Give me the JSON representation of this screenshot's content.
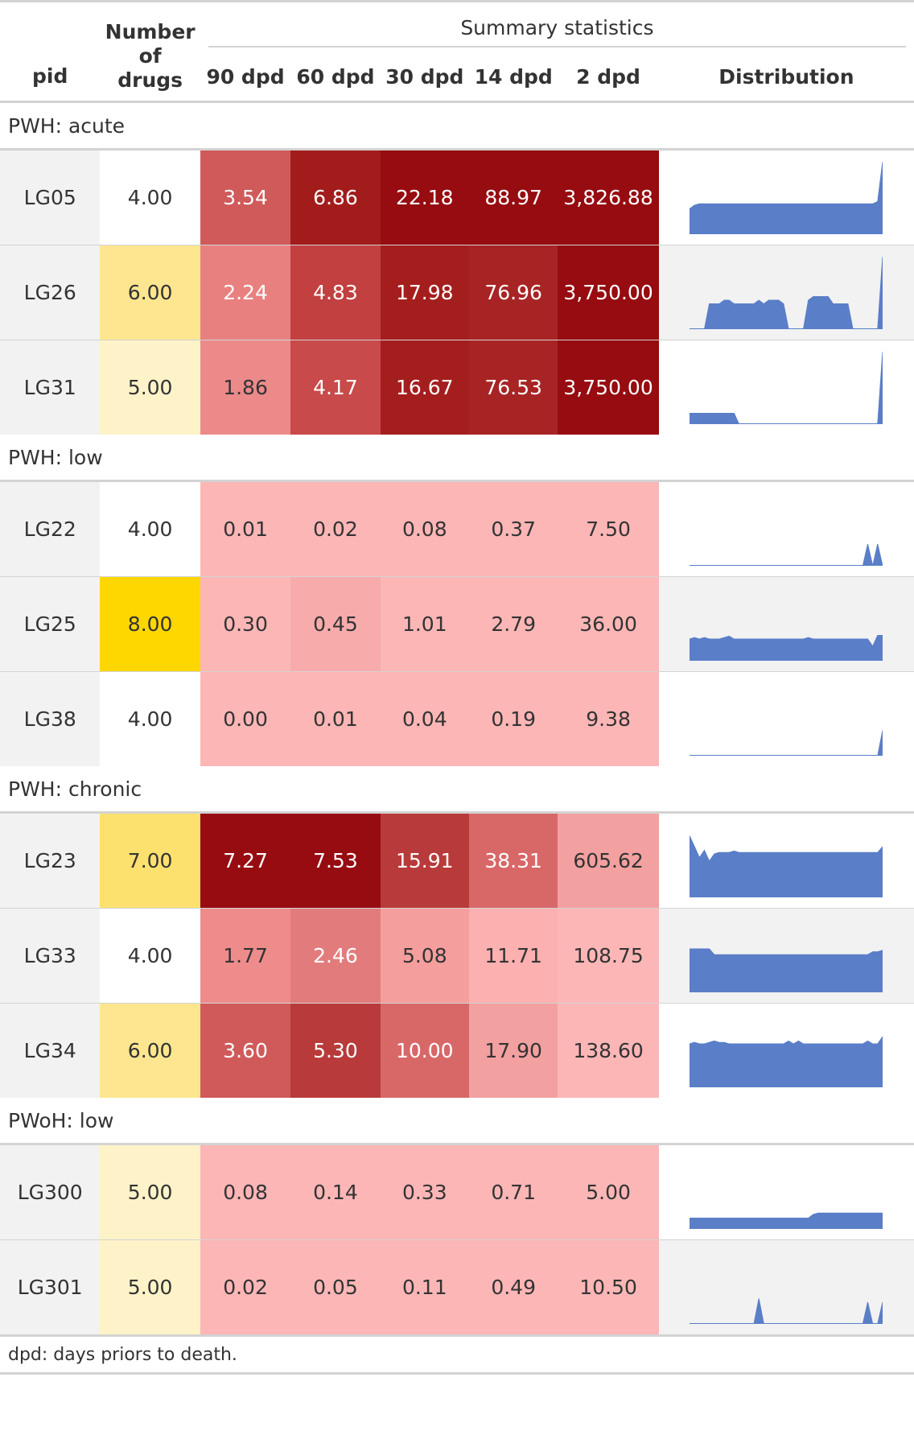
{
  "headers": {
    "pid": "pid",
    "num_drugs_line1": "Number",
    "num_drugs_line2": "of",
    "num_drugs_line3": "drugs",
    "spanner": "Summary statistics",
    "cols": [
      "90 dpd",
      "60 dpd",
      "30 dpd",
      "14 dpd",
      "2 dpd"
    ],
    "distribution": "Distribution"
  },
  "groups": [
    {
      "label": "PWH: acute",
      "rows": [
        {
          "pid": "LG05",
          "drugs": "4.00",
          "drugs_bg": "#ffffff",
          "vals": [
            "3.54",
            "6.86",
            "22.18",
            "88.97",
            "3,826.88"
          ],
          "bgs": [
            "#d05a5a",
            "#a31c1c",
            "#960c10",
            "#960c10",
            "#960c10"
          ],
          "fgs": [
            "#ffffff",
            "#ffffff",
            "#ffffff",
            "#ffffff",
            "#ffffff"
          ],
          "dist": [
            0.35,
            0.4,
            0.42,
            0.42,
            0.42,
            0.42,
            0.42,
            0.42,
            0.42,
            0.42,
            0.42,
            0.42,
            0.42,
            0.42,
            0.42,
            0.42,
            0.42,
            0.42,
            0.42,
            0.42,
            0.42,
            0.42,
            0.42,
            0.42,
            0.42,
            0.42,
            0.42,
            0.42,
            0.42,
            0.42,
            0.42,
            0.42,
            0.42,
            0.42,
            0.42,
            0.42,
            0.42,
            0.42,
            0.45,
            1.0
          ]
        },
        {
          "pid": "LG26",
          "drugs": "6.00",
          "drugs_bg": "#fde68f",
          "vals": [
            "2.24",
            "4.83",
            "17.98",
            "76.96",
            "3,750.00"
          ],
          "bgs": [
            "#e88080",
            "#c24040",
            "#a51e1e",
            "#a82424",
            "#960c10"
          ],
          "fgs": [
            "#ffffff",
            "#ffffff",
            "#ffffff",
            "#ffffff",
            "#ffffff"
          ],
          "dist": [
            0,
            0,
            0,
            0,
            0.35,
            0.35,
            0.35,
            0.4,
            0.4,
            0.35,
            0.35,
            0.35,
            0.35,
            0.35,
            0.4,
            0.35,
            0.4,
            0.4,
            0.4,
            0.35,
            0,
            0,
            0,
            0,
            0.4,
            0.45,
            0.45,
            0.45,
            0.45,
            0.35,
            0.35,
            0.35,
            0.35,
            0,
            0,
            0,
            0,
            0,
            0,
            1.0
          ]
        },
        {
          "pid": "LG31",
          "drugs": "5.00",
          "drugs_bg": "#fef3c8",
          "vals": [
            "1.86",
            "4.17",
            "16.67",
            "76.53",
            "3,750.00"
          ],
          "bgs": [
            "#ec8a8a",
            "#c84a4a",
            "#a51e1e",
            "#a82424",
            "#960c10"
          ],
          "fgs": [
            "#333333",
            "#ffffff",
            "#ffffff",
            "#ffffff",
            "#ffffff"
          ],
          "dist": [
            0.15,
            0.15,
            0.15,
            0.15,
            0.15,
            0.15,
            0.15,
            0.15,
            0.15,
            0.15,
            0,
            0,
            0,
            0,
            0,
            0,
            0,
            0,
            0,
            0,
            0,
            0,
            0,
            0,
            0,
            0,
            0,
            0,
            0,
            0,
            0,
            0,
            0,
            0,
            0,
            0,
            0,
            0,
            0,
            1.0
          ]
        }
      ]
    },
    {
      "label": "PWH: low",
      "rows": [
        {
          "pid": "LG22",
          "drugs": "4.00",
          "drugs_bg": "#ffffff",
          "vals": [
            "0.01",
            "0.02",
            "0.08",
            "0.37",
            "7.50"
          ],
          "bgs": [
            "#fcb6b6",
            "#fcb6b6",
            "#fcb6b6",
            "#fcb6b6",
            "#fcb6b6"
          ],
          "fgs": [
            "#333333",
            "#333333",
            "#333333",
            "#333333",
            "#333333"
          ],
          "dist": [
            0,
            0,
            0,
            0,
            0,
            0,
            0,
            0,
            0,
            0,
            0,
            0,
            0,
            0,
            0,
            0,
            0,
            0,
            0,
            0,
            0,
            0,
            0,
            0,
            0,
            0,
            0,
            0,
            0,
            0,
            0,
            0,
            0,
            0,
            0,
            0,
            0.3,
            0,
            0.3,
            0
          ]
        },
        {
          "pid": "LG25",
          "drugs": "8.00",
          "drugs_bg": "#ffd700",
          "vals": [
            "0.30",
            "0.45",
            "1.01",
            "2.79",
            "36.00"
          ],
          "bgs": [
            "#fcb6b6",
            "#f8abab",
            "#fcb6b6",
            "#fcb6b6",
            "#fcb6b6"
          ],
          "fgs": [
            "#333333",
            "#333333",
            "#333333",
            "#333333",
            "#333333"
          ],
          "dist": [
            0.3,
            0.32,
            0.3,
            0.32,
            0.3,
            0.3,
            0.3,
            0.32,
            0.34,
            0.3,
            0.3,
            0.3,
            0.3,
            0.3,
            0.3,
            0.3,
            0.3,
            0.3,
            0.3,
            0.3,
            0.3,
            0.3,
            0.3,
            0.3,
            0.32,
            0.3,
            0.3,
            0.3,
            0.3,
            0.3,
            0.3,
            0.3,
            0.3,
            0.3,
            0.3,
            0.3,
            0.3,
            0.2,
            0.35,
            0.35
          ]
        },
        {
          "pid": "LG38",
          "drugs": "4.00",
          "drugs_bg": "#ffffff",
          "vals": [
            "0.00",
            "0.01",
            "0.04",
            "0.19",
            "9.38"
          ],
          "bgs": [
            "#fcb6b6",
            "#fcb6b6",
            "#fcb6b6",
            "#fcb6b6",
            "#fcb6b6"
          ],
          "fgs": [
            "#333333",
            "#333333",
            "#333333",
            "#333333",
            "#333333"
          ],
          "dist": [
            0,
            0,
            0,
            0,
            0,
            0,
            0,
            0,
            0,
            0,
            0,
            0,
            0,
            0,
            0,
            0,
            0,
            0,
            0,
            0,
            0,
            0,
            0,
            0,
            0,
            0,
            0,
            0,
            0,
            0,
            0,
            0,
            0,
            0,
            0,
            0,
            0,
            0,
            0,
            0.35
          ]
        }
      ]
    },
    {
      "label": "PWH: chronic",
      "rows": [
        {
          "pid": "LG23",
          "drugs": "7.00",
          "drugs_bg": "#fde16f",
          "vals": [
            "7.27",
            "7.53",
            "15.91",
            "38.31",
            "605.62"
          ],
          "bgs": [
            "#960c10",
            "#960c10",
            "#b93a3a",
            "#d86868",
            "#f3a0a0"
          ],
          "fgs": [
            "#ffffff",
            "#ffffff",
            "#ffffff",
            "#ffffff",
            "#333333"
          ],
          "dist": [
            0.85,
            0.7,
            0.55,
            0.65,
            0.5,
            0.6,
            0.62,
            0.62,
            0.62,
            0.64,
            0.62,
            0.62,
            0.62,
            0.62,
            0.62,
            0.62,
            0.62,
            0.62,
            0.62,
            0.62,
            0.62,
            0.62,
            0.62,
            0.62,
            0.62,
            0.62,
            0.62,
            0.62,
            0.62,
            0.62,
            0.62,
            0.62,
            0.62,
            0.62,
            0.62,
            0.62,
            0.62,
            0.62,
            0.62,
            0.7
          ]
        },
        {
          "pid": "LG33",
          "drugs": "4.00",
          "drugs_bg": "#ffffff",
          "vals": [
            "1.77",
            "2.46",
            "5.08",
            "11.71",
            "108.75"
          ],
          "bgs": [
            "#ee8c8c",
            "#e27c7c",
            "#f59e9e",
            "#fcb0b0",
            "#fcb6b6"
          ],
          "fgs": [
            "#333333",
            "#ffffff",
            "#333333",
            "#333333",
            "#333333"
          ],
          "dist": [
            0.6,
            0.6,
            0.6,
            0.6,
            0.6,
            0.52,
            0.52,
            0.52,
            0.52,
            0.52,
            0.52,
            0.52,
            0.52,
            0.52,
            0.52,
            0.52,
            0.52,
            0.52,
            0.52,
            0.52,
            0.52,
            0.52,
            0.52,
            0.52,
            0.52,
            0.52,
            0.52,
            0.52,
            0.52,
            0.52,
            0.52,
            0.52,
            0.52,
            0.52,
            0.52,
            0.52,
            0.52,
            0.56,
            0.56,
            0.58
          ]
        },
        {
          "pid": "LG34",
          "drugs": "6.00",
          "drugs_bg": "#fde68f",
          "vals": [
            "3.60",
            "5.30",
            "10.00",
            "17.90",
            "138.60"
          ],
          "bgs": [
            "#d05a5a",
            "#b93a3a",
            "#d86868",
            "#f3a0a0",
            "#fcb6b6"
          ],
          "fgs": [
            "#ffffff",
            "#ffffff",
            "#ffffff",
            "#333333",
            "#333333"
          ],
          "dist": [
            0.6,
            0.62,
            0.6,
            0.6,
            0.62,
            0.64,
            0.62,
            0.62,
            0.6,
            0.6,
            0.6,
            0.6,
            0.6,
            0.6,
            0.6,
            0.6,
            0.6,
            0.6,
            0.6,
            0.6,
            0.64,
            0.6,
            0.64,
            0.6,
            0.6,
            0.6,
            0.6,
            0.6,
            0.6,
            0.6,
            0.6,
            0.6,
            0.6,
            0.6,
            0.6,
            0.6,
            0.64,
            0.6,
            0.6,
            0.7
          ]
        }
      ]
    },
    {
      "label": "PWoH: low",
      "rows": [
        {
          "pid": "LG300",
          "drugs": "5.00",
          "drugs_bg": "#fef3c8",
          "vals": [
            "0.08",
            "0.14",
            "0.33",
            "0.71",
            "5.00"
          ],
          "bgs": [
            "#fcb6b6",
            "#fcb6b6",
            "#fcb6b6",
            "#fcb6b6",
            "#fcb6b6"
          ],
          "fgs": [
            "#333333",
            "#333333",
            "#333333",
            "#333333",
            "#333333"
          ],
          "dist": [
            0.15,
            0.15,
            0.15,
            0.15,
            0.15,
            0.15,
            0.15,
            0.15,
            0.15,
            0.15,
            0.15,
            0.15,
            0.15,
            0.15,
            0.15,
            0.15,
            0.15,
            0.15,
            0.15,
            0.15,
            0.15,
            0.15,
            0.15,
            0.15,
            0.15,
            0.2,
            0.22,
            0.22,
            0.22,
            0.22,
            0.22,
            0.22,
            0.22,
            0.22,
            0.22,
            0.22,
            0.22,
            0.22,
            0.22,
            0.22
          ]
        },
        {
          "pid": "LG301",
          "drugs": "5.00",
          "drugs_bg": "#fef3c8",
          "vals": [
            "0.02",
            "0.05",
            "0.11",
            "0.49",
            "10.50"
          ],
          "bgs": [
            "#fcb6b6",
            "#fcb6b6",
            "#fcb6b6",
            "#fcb6b6",
            "#fcb6b6"
          ],
          "fgs": [
            "#333333",
            "#333333",
            "#333333",
            "#333333",
            "#333333"
          ],
          "dist": [
            0,
            0,
            0,
            0,
            0,
            0,
            0,
            0,
            0,
            0,
            0,
            0,
            0,
            0,
            0.35,
            0,
            0,
            0,
            0,
            0,
            0,
            0,
            0,
            0,
            0,
            0,
            0,
            0,
            0,
            0,
            0,
            0,
            0,
            0,
            0,
            0,
            0.3,
            0,
            0,
            0.3
          ]
        }
      ]
    }
  ],
  "footnote": "dpd: days priors to death.",
  "colors": {
    "spark_fill": "#5a7ec8",
    "spark_base": "#5a7ec8"
  }
}
